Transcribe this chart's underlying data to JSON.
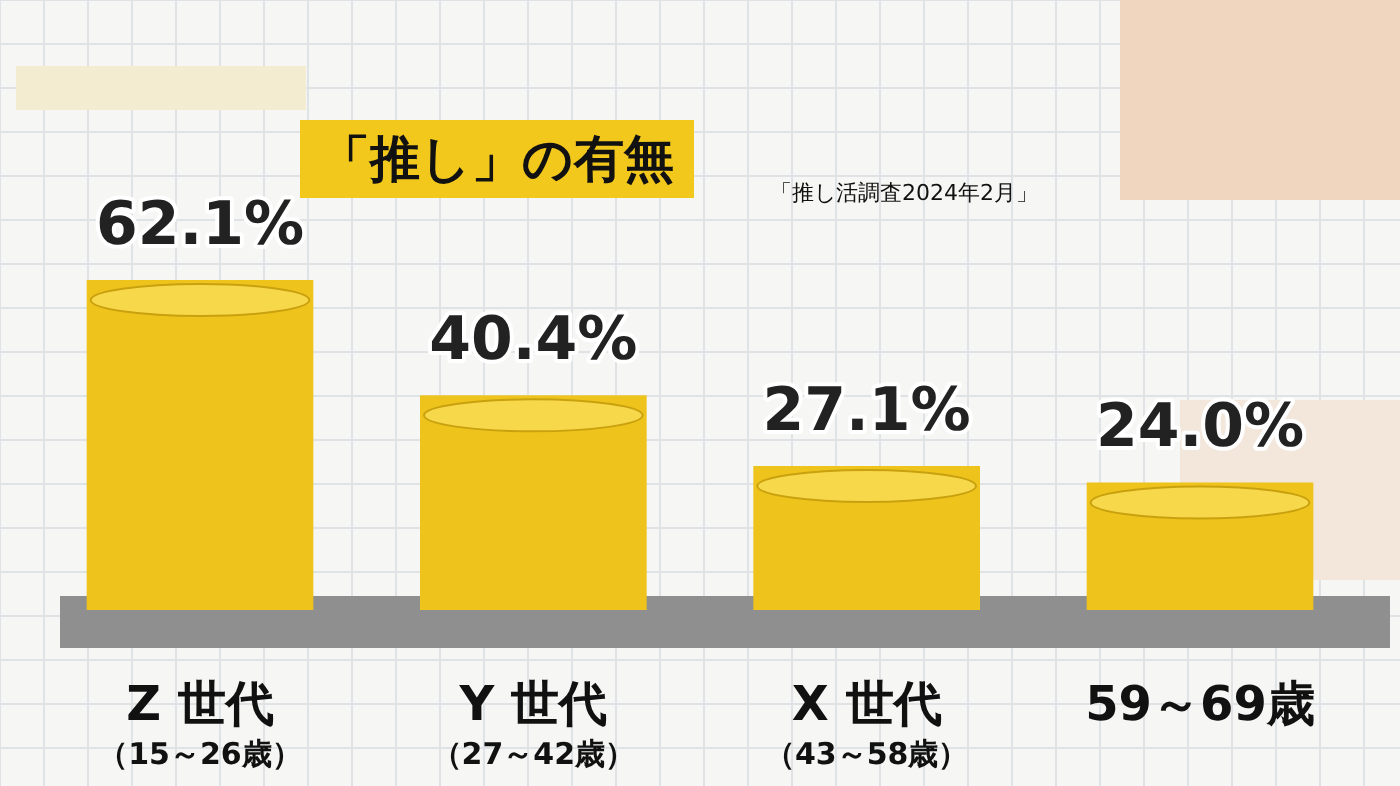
{
  "chart_data": {
    "type": "bar",
    "title": "「推し」の有無",
    "annotations": [
      "「推し活調査2024年2月」"
    ],
    "categories": [
      "Z 世代（15～26歳）",
      "Y 世代（27～42歳）",
      "X 世代（43～58歳）",
      "59～69歳"
    ],
    "grid": true,
    "values": [
      62.1,
      40.4,
      27.1,
      24.0
    ],
    "value_labels": [
      "62.1%",
      "40.4%",
      "27.1%",
      "24.0%"
    ],
    "color": "#eec41c"
  }
}
